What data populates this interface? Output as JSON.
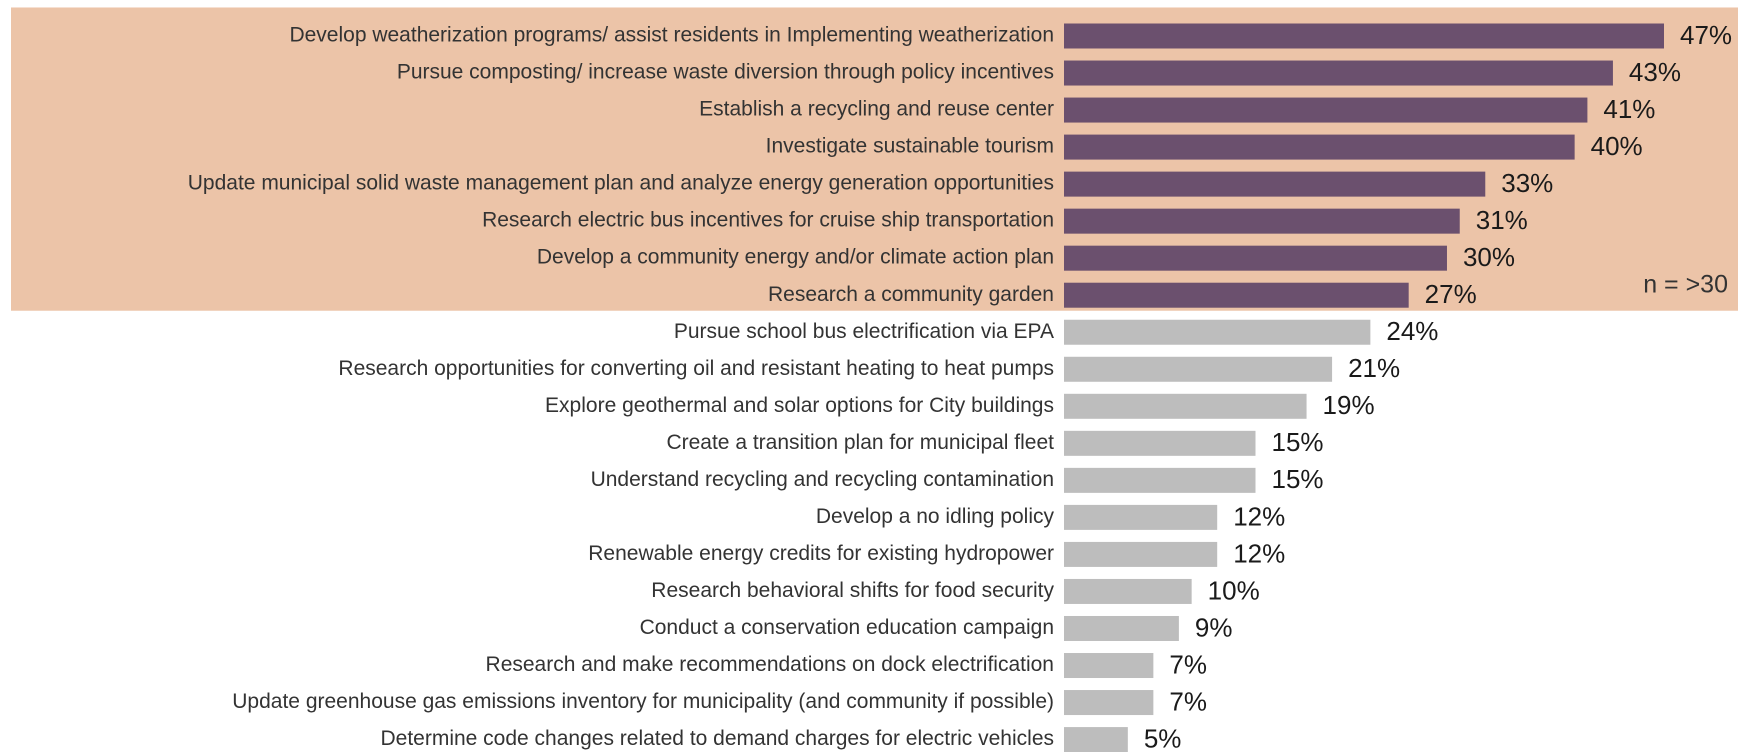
{
  "chart_data": {
    "type": "hbar",
    "categories": [
      "Develop weatherization programs/ assist residents in Implementing weatherization",
      "Pursue composting/ increase waste diversion through policy incentives",
      "Establish a recycling and reuse center",
      "Investigate sustainable tourism",
      "Update municipal solid waste management plan and analyze energy generation opportunities",
      "Research electric bus incentives for cruise ship transportation",
      "Develop a community energy and/or climate action plan",
      "Research a community garden",
      "Pursue school bus electrification via EPA",
      "Research opportunities for converting oil and resistant heating to heat pumps",
      "Explore geothermal and solar options for City buildings",
      "Create a transition plan for municipal fleet",
      "Understand recycling and recycling contamination",
      "Develop a no idling policy",
      "Renewable energy credits for existing hydropower",
      "Research behavioral shifts for food security",
      "Conduct a conservation education campaign",
      "Research and make recommendations on dock electrification",
      "Update greenhouse gas emissions inventory for municipality (and community if possible)",
      "Determine code changes related to demand charges for electric vehicles"
    ],
    "values": [
      47,
      43,
      41,
      40,
      33,
      31,
      30,
      27,
      24,
      21,
      19,
      15,
      15,
      12,
      12,
      10,
      9,
      7,
      7,
      5
    ],
    "value_labels": [
      "47%",
      "43%",
      "41%",
      "40%",
      "33%",
      "31%",
      "30%",
      "27%",
      "24%",
      "21%",
      "19%",
      "15%",
      "15%",
      "12%",
      "12%",
      "10%",
      "9%",
      "7%",
      "7%",
      "5%"
    ],
    "colors": [
      "#6b506e",
      "#6b506e",
      "#6b506e",
      "#6b506e",
      "#6b506e",
      "#6b506e",
      "#6b506e",
      "#6b506e",
      "#bdbdbd",
      "#bdbdbd",
      "#bdbdbd",
      "#bdbdbd",
      "#bdbdbd",
      "#bdbdbd",
      "#bdbdbd",
      "#bdbdbd",
      "#bdbdbd",
      "#bdbdbd",
      "#bdbdbd",
      "#bdbdbd"
    ],
    "highlight_color": "#ecc4a8",
    "annotation": "n = >30"
  }
}
